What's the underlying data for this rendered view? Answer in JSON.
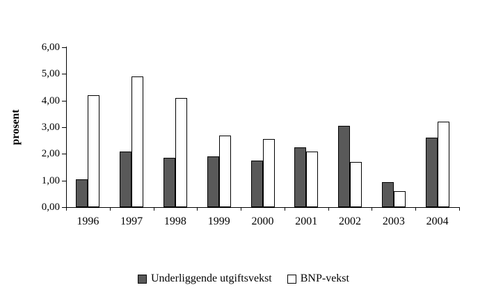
{
  "chart_data": {
    "type": "bar",
    "title": "",
    "xlabel": "",
    "ylabel": "prosent",
    "categories": [
      "1996",
      "1997",
      "1998",
      "1999",
      "2000",
      "2001",
      "2002",
      "2003",
      "2004"
    ],
    "series": [
      {
        "name": "Underliggende utgiftsvekst",
        "color": "#595959",
        "values": [
          1.05,
          2.1,
          1.85,
          1.9,
          1.75,
          2.25,
          3.05,
          0.95,
          2.6
        ]
      },
      {
        "name": "BNP-vekst",
        "color": "#ffffff",
        "values": [
          4.2,
          4.9,
          4.1,
          2.7,
          2.55,
          2.1,
          1.7,
          0.6,
          3.2
        ]
      }
    ],
    "ylim": [
      0,
      6
    ],
    "y_tick_step": 1,
    "y_tick_labels": [
      "0,00",
      "1,00",
      "2,00",
      "3,00",
      "4,00",
      "5,00",
      "6,00"
    ],
    "grid": false,
    "legend_position": "bottom",
    "bar_border_color": "#000000",
    "background_color": "#ffffff"
  }
}
